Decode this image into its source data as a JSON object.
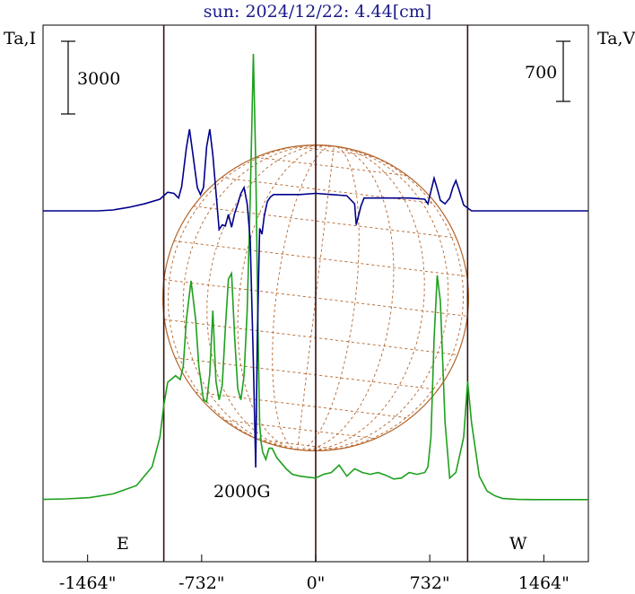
{
  "title": "sun: 2024/12/22: 4.44[cm]",
  "left_axis_label": "Ta,I",
  "right_axis_label": "Ta,V",
  "scale_left": "3000",
  "scale_right": "700",
  "field_label": "2000G",
  "east_label": "E",
  "west_label": "W",
  "chart_data": {
    "type": "line",
    "xlim": [
      -1750,
      1750
    ],
    "x_ticks": [
      -1464,
      -732,
      0,
      732,
      1464
    ],
    "x_tick_labels": [
      "-1464\"",
      "-732\"",
      "0\"",
      "732\"",
      "1464\""
    ],
    "limb_arcsec": 975,
    "grid": true,
    "series": [
      {
        "color": "#1ea01e",
        "x": [
          -1750,
          -1600,
          -1450,
          -1300,
          -1150,
          -1050,
          -1000,
          -975,
          -950,
          -900,
          -870,
          -850,
          -830,
          -800,
          -770,
          -750,
          -720,
          -700,
          -680,
          -660,
          -640,
          -620,
          -600,
          -580,
          -560,
          -540,
          -520,
          -500,
          -480,
          -460,
          -440,
          -420,
          -400,
          -385,
          -370,
          -360,
          -350,
          -340,
          -320,
          -300,
          -280,
          -250,
          -220,
          -190,
          -150,
          -100,
          -50,
          0,
          50,
          100,
          150,
          200,
          250,
          300,
          350,
          400,
          450,
          500,
          550,
          600,
          650,
          700,
          720,
          740,
          760,
          780,
          800,
          830,
          860,
          900,
          950,
          975,
          1000,
          1050,
          1100,
          1150,
          1200,
          1300,
          1400,
          1500,
          1750
        ],
        "y": [
          1850,
          1880,
          1950,
          2150,
          2600,
          3600,
          5200,
          6900,
          8150,
          8500,
          8300,
          9000,
          11500,
          13600,
          11500,
          9000,
          7200,
          7100,
          8600,
          12000,
          8200,
          7200,
          8000,
          11000,
          13700,
          14000,
          10500,
          7800,
          7200,
          8500,
          12000,
          18000,
          25800,
          20000,
          11000,
          5900,
          4900,
          4400,
          4000,
          4600,
          4600,
          4100,
          3800,
          3500,
          3200,
          3100,
          3050,
          3000,
          3200,
          3300,
          3700,
          3100,
          3500,
          3300,
          3200,
          3300,
          3150,
          2950,
          3000,
          3300,
          3200,
          3300,
          3600,
          5200,
          10500,
          13900,
          12500,
          6000,
          3000,
          3300,
          5200,
          8200,
          6000,
          3100,
          2300,
          2050,
          1900,
          1850,
          1840,
          1840,
          1840
        ]
      },
      {
        "color": "#00008b",
        "x": [
          -1750,
          -1400,
          -1300,
          -1200,
          -1100,
          -1000,
          -950,
          -910,
          -880,
          -860,
          -830,
          -810,
          -790,
          -760,
          -740,
          -720,
          -700,
          -680,
          -660,
          -640,
          -620,
          -600,
          -580,
          -560,
          -540,
          -520,
          -500,
          -480,
          -460,
          -440,
          -420,
          -400,
          -385,
          -375,
          -360,
          -345,
          -330,
          -310,
          -290,
          -270,
          -250,
          -200,
          -100,
          0,
          100,
          200,
          250,
          260,
          290,
          310,
          350,
          400,
          500,
          600,
          700,
          720,
          740,
          760,
          780,
          800,
          830,
          860,
          880,
          900,
          920,
          950,
          1000,
          1100,
          1200,
          1400,
          1750
        ],
        "y": [
          0,
          0,
          8,
          30,
          60,
          100,
          160,
          150,
          110,
          210,
          540,
          700,
          500,
          200,
          140,
          200,
          550,
          700,
          480,
          160,
          -160,
          -120,
          -130,
          -30,
          -140,
          -20,
          60,
          150,
          200,
          60,
          -250,
          -1300,
          -2200,
          -1100,
          -150,
          -200,
          -40,
          80,
          120,
          140,
          140,
          140,
          140,
          150,
          140,
          130,
          60,
          -120,
          40,
          110,
          110,
          110,
          110,
          110,
          100,
          60,
          170,
          280,
          190,
          90,
          60,
          110,
          200,
          260,
          180,
          50,
          0,
          0,
          0,
          0,
          0
        ]
      }
    ]
  }
}
